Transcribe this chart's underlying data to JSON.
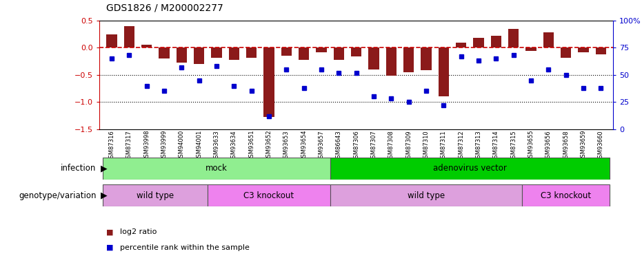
{
  "title": "GDS1826 / M200002277",
  "samples": [
    "GSM87316",
    "GSM87317",
    "GSM93998",
    "GSM93999",
    "GSM94000",
    "GSM94001",
    "GSM93633",
    "GSM93634",
    "GSM93651",
    "GSM93652",
    "GSM93653",
    "GSM93654",
    "GSM93657",
    "GSM86643",
    "GSM87306",
    "GSM87307",
    "GSM87308",
    "GSM87309",
    "GSM87310",
    "GSM87311",
    "GSM87312",
    "GSM87313",
    "GSM87314",
    "GSM87315",
    "GSM93655",
    "GSM93656",
    "GSM93658",
    "GSM93659",
    "GSM93660"
  ],
  "log2_ratio": [
    0.25,
    0.4,
    0.05,
    -0.2,
    -0.28,
    -0.3,
    -0.18,
    -0.22,
    -0.18,
    -1.28,
    -0.15,
    -0.22,
    -0.08,
    -0.22,
    -0.16,
    -0.4,
    -0.52,
    -0.45,
    -0.42,
    -0.9,
    0.1,
    0.18,
    0.22,
    0.35,
    -0.06,
    0.28,
    -0.18,
    -0.08,
    -0.12
  ],
  "percentile_rank": [
    65,
    68,
    40,
    35,
    57,
    45,
    58,
    40,
    35,
    12,
    55,
    38,
    55,
    52,
    52,
    30,
    28,
    25,
    35,
    22,
    67,
    63,
    65,
    68,
    45,
    55,
    50,
    38,
    38
  ],
  "infection_groups": [
    {
      "label": "mock",
      "start": 0,
      "end": 12,
      "color": "#90EE90"
    },
    {
      "label": "adenovirus vector",
      "start": 13,
      "end": 28,
      "color": "#00CC00"
    }
  ],
  "genotype_groups": [
    {
      "label": "wild type",
      "start": 0,
      "end": 5,
      "color": "#DDA0DD"
    },
    {
      "label": "C3 knockout",
      "start": 6,
      "end": 12,
      "color": "#EE82EE"
    },
    {
      "label": "wild type",
      "start": 13,
      "end": 23,
      "color": "#DDA0DD"
    },
    {
      "label": "C3 knockout",
      "start": 24,
      "end": 28,
      "color": "#EE82EE"
    }
  ],
  "ylim_left": [
    -1.5,
    0.5
  ],
  "ylim_right": [
    0,
    100
  ],
  "bar_color": "#8B1A1A",
  "dot_color": "#0000CD",
  "hline_color": "#CC0000",
  "yticks_left": [
    -1.5,
    -1.0,
    -0.5,
    0.0,
    0.5
  ],
  "yticks_right": [
    0,
    25,
    50,
    75,
    100
  ],
  "annotation_infection": "infection",
  "annotation_genotype": "genotype/variation",
  "legend_bar_label": "log2 ratio",
  "legend_dot_label": "percentile rank within the sample"
}
